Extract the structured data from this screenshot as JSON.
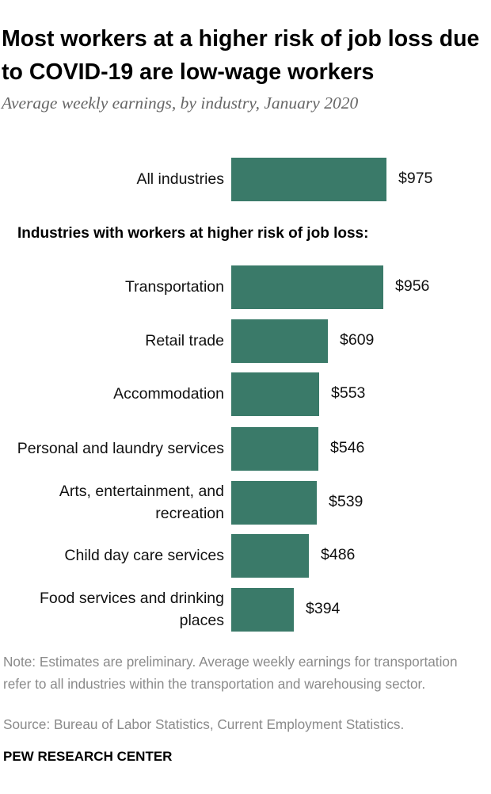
{
  "header": {
    "title": "Most workers at a higher risk of job loss due to COVID-19 are low-wage workers",
    "subtitle": "Average weekly earnings, by industry, January 2020"
  },
  "chart_data": {
    "type": "bar",
    "orientation": "horizontal",
    "group_header": "Industries with workers at higher risk of job loss:",
    "bar_color": "#3a7a69",
    "xlim": [
      0,
      975
    ],
    "grid": false,
    "bars": [
      {
        "label": "All industries",
        "value": 975,
        "value_label": "$975"
      },
      {
        "label": "Transportation",
        "value": 956,
        "value_label": "$956"
      },
      {
        "label": "Retail trade",
        "value": 609,
        "value_label": "$609"
      },
      {
        "label": "Accommodation",
        "value": 553,
        "value_label": "$553"
      },
      {
        "label": "Personal and laundry services",
        "value": 546,
        "value_label": "$546"
      },
      {
        "label": "Arts, entertainment, and recreation",
        "value": 539,
        "value_label": "$539"
      },
      {
        "label": "Child day care services",
        "value": 486,
        "value_label": "$486"
      },
      {
        "label": "Food services and drinking places",
        "value": 394,
        "value_label": "$394"
      }
    ]
  },
  "footer": {
    "note": "Note: Estimates are preliminary. Average weekly earnings for transportation refer to all industries within the transportation and warehousing sector.",
    "source": "Source: Bureau of Labor Statistics, Current Employment Statistics.",
    "org": "PEW RESEARCH CENTER"
  }
}
